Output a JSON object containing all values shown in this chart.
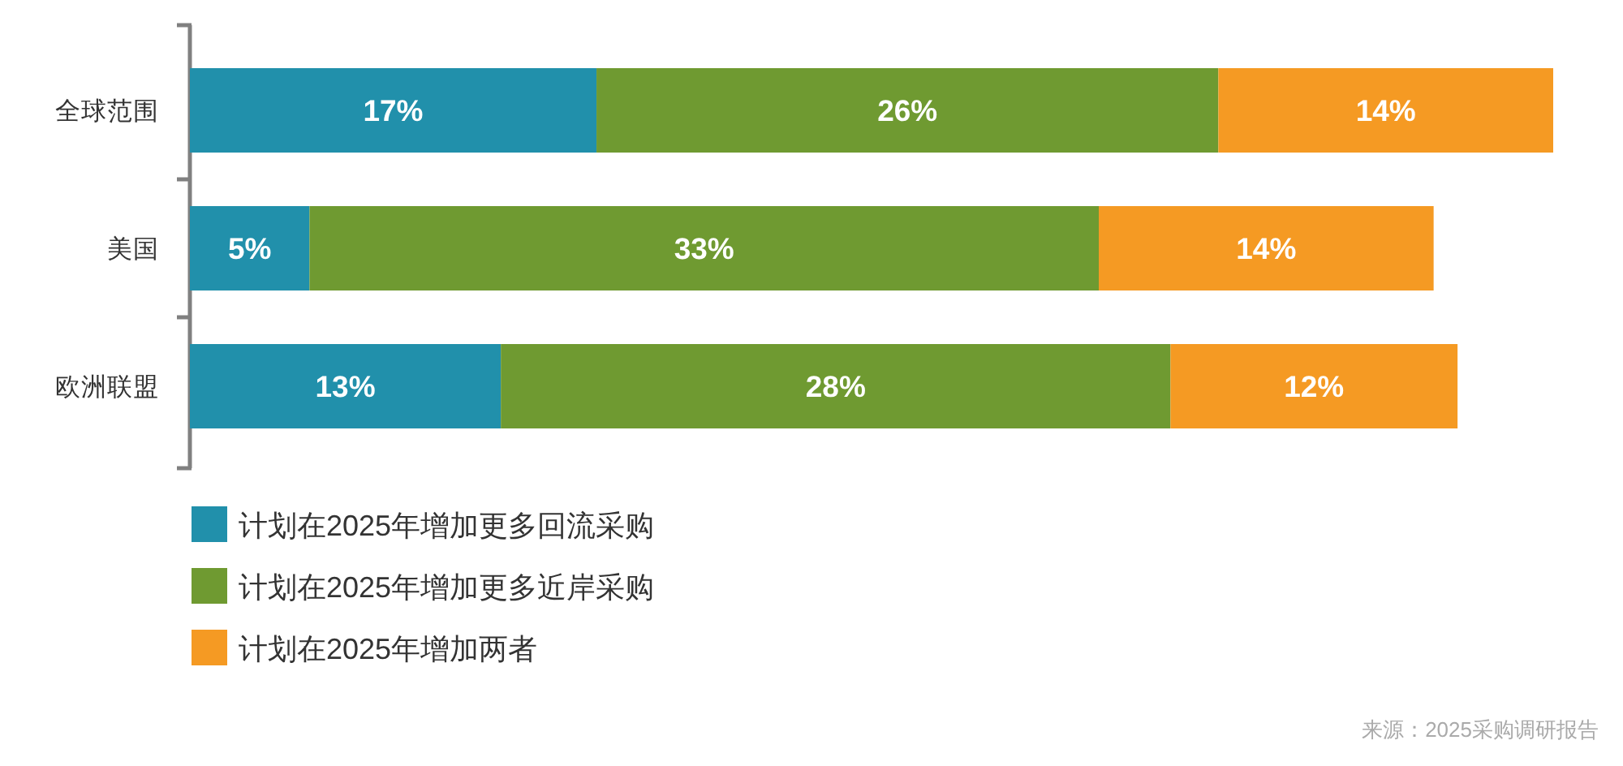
{
  "chart_data": {
    "type": "bar",
    "orientation": "horizontal",
    "stacked": true,
    "categories": [
      "全球范围",
      "美国",
      "欧洲联盟"
    ],
    "series": [
      {
        "name": "计划在2025年增加更多回流采购",
        "color": "#2190ab",
        "values": [
          17,
          5,
          13
        ],
        "value_labels": [
          "17%",
          "5%",
          "13%"
        ]
      },
      {
        "name": "计划在2025年增加更多近岸采购",
        "color": "#6f9a31",
        "values": [
          26,
          33,
          28
        ],
        "value_labels": [
          "26%",
          "33%",
          "28%"
        ]
      },
      {
        "name": "计划在2025年增加两者",
        "color": "#f59a23",
        "values": [
          14,
          14,
          12
        ],
        "value_labels": [
          "14%",
          "14%",
          "12%"
        ]
      }
    ],
    "tick_labels": "y",
    "legend": "bottom",
    "annotations": [
      "来源：2025采购调研报告"
    ]
  }
}
